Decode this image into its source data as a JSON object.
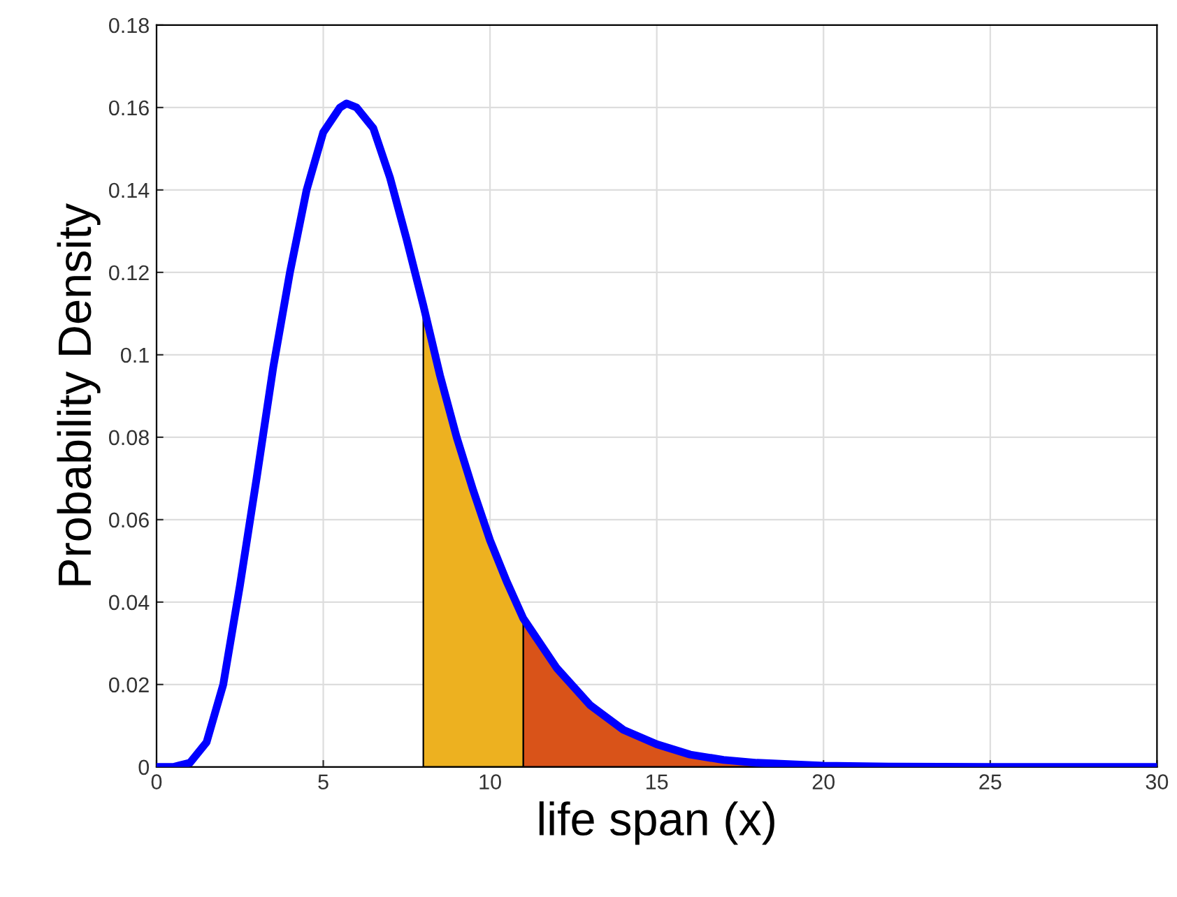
{
  "chart_data": {
    "type": "line",
    "xlabel": "life span (x)",
    "ylabel": "Probability Density",
    "xlim": [
      0,
      30
    ],
    "ylim": [
      0,
      0.18
    ],
    "xticks": [
      0,
      5,
      10,
      15,
      20,
      25,
      30
    ],
    "yticks": [
      0,
      0.02,
      0.04,
      0.06,
      0.08,
      0.1,
      0.12,
      0.14,
      0.16,
      0.18
    ],
    "grid": true,
    "legend": false,
    "series": [
      {
        "type": "area",
        "color": "#edb120",
        "x": [
          8,
          8.5,
          9,
          9.5,
          10,
          10.5,
          11
        ],
        "values": [
          0.112,
          0.095,
          0.08,
          0.067,
          0.055,
          0.045,
          0.036
        ]
      },
      {
        "type": "area",
        "color": "#d95319",
        "x": [
          11,
          12,
          13,
          14,
          15,
          16,
          17,
          18,
          20,
          22,
          25,
          30
        ],
        "values": [
          0.036,
          0.024,
          0.015,
          0.009,
          0.0055,
          0.003,
          0.0017,
          0.001,
          0.0003,
          0.0001,
          0,
          0
        ]
      },
      {
        "color": "#0000ff",
        "x": [
          0,
          0.5,
          1,
          1.5,
          2,
          2.5,
          3,
          3.5,
          4,
          4.5,
          5,
          5.5,
          5.7,
          6,
          6.5,
          7,
          7.5,
          8,
          8.5,
          9,
          9.5,
          10,
          10.5,
          11,
          12,
          13,
          14,
          15,
          16,
          17,
          18,
          20,
          22,
          25,
          30
        ],
        "values": [
          0,
          0,
          0.001,
          0.006,
          0.02,
          0.044,
          0.07,
          0.097,
          0.12,
          0.14,
          0.154,
          0.16,
          0.161,
          0.16,
          0.155,
          0.143,
          0.128,
          0.112,
          0.095,
          0.08,
          0.067,
          0.055,
          0.045,
          0.036,
          0.024,
          0.015,
          0.009,
          0.0055,
          0.003,
          0.0017,
          0.001,
          0.0003,
          0.0001,
          0,
          0
        ]
      }
    ]
  }
}
